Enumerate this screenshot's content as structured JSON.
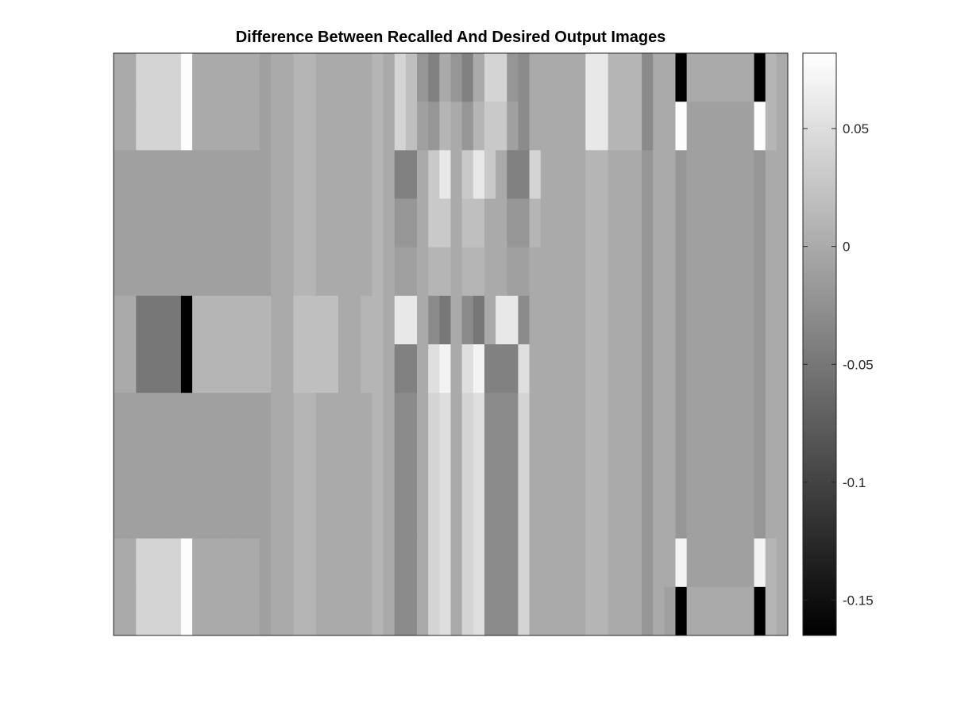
{
  "chart_data": {
    "type": "heatmap",
    "title": "Difference Between Recalled And Desired Output Images",
    "xlabel": "",
    "ylabel": "",
    "colormap": "gray",
    "clim": [
      -0.165,
      0.082
    ],
    "colorbar": {
      "ticks": [
        0.05,
        0,
        -0.05,
        -0.1,
        -0.15
      ],
      "tick_labels": [
        "0.05",
        "0",
        "-0.05",
        "-0.1",
        "-0.15"
      ],
      "placement": "right"
    },
    "n_rows": 12,
    "n_cols": 60,
    "grid": false,
    "values": [
      [
        0.0,
        0.0,
        0.04,
        0.04,
        0.04,
        0.04,
        0.08,
        0.0,
        0.0,
        0.0,
        0.0,
        0.0,
        0.0,
        -0.01,
        0.0,
        0.0,
        0.01,
        0.01,
        0.0,
        0.0,
        0.0,
        0.0,
        0.0,
        0.01,
        0.0,
        0.04,
        0.02,
        -0.02,
        -0.04,
        0.0,
        -0.02,
        -0.04,
        0.0,
        0.04,
        0.04,
        -0.02,
        -0.03,
        0.0,
        0.0,
        0.0,
        0.0,
        0.0,
        0.06,
        0.06,
        0.01,
        0.01,
        0.01,
        -0.03,
        0.0,
        0.0,
        -0.17,
        0.0,
        0.0,
        0.0,
        0.0,
        0.0,
        0.0,
        -0.17,
        0.01,
        0.0
      ],
      [
        0.0,
        0.0,
        0.04,
        0.04,
        0.04,
        0.04,
        0.08,
        0.0,
        0.0,
        0.0,
        0.0,
        0.0,
        0.0,
        -0.01,
        0.0,
        0.0,
        0.01,
        0.01,
        0.0,
        0.0,
        0.0,
        0.0,
        0.0,
        0.01,
        0.0,
        0.04,
        0.02,
        -0.01,
        -0.02,
        0.01,
        0.0,
        -0.02,
        0.01,
        0.03,
        0.03,
        -0.01,
        -0.03,
        0.0,
        0.0,
        0.0,
        0.0,
        0.0,
        0.06,
        0.06,
        0.01,
        0.01,
        0.01,
        -0.03,
        0.0,
        0.0,
        0.08,
        -0.01,
        -0.01,
        -0.01,
        -0.01,
        -0.01,
        -0.01,
        0.08,
        0.01,
        0.0
      ],
      [
        -0.01,
        -0.01,
        -0.01,
        -0.01,
        -0.01,
        -0.01,
        -0.01,
        -0.01,
        -0.01,
        -0.01,
        -0.01,
        -0.01,
        -0.01,
        -0.01,
        0.0,
        0.0,
        0.01,
        0.01,
        0.0,
        0.0,
        0.0,
        0.0,
        0.0,
        0.01,
        0.0,
        -0.04,
        -0.04,
        0.0,
        0.03,
        0.06,
        0.0,
        0.03,
        0.06,
        0.03,
        0.0,
        -0.04,
        -0.04,
        0.04,
        0.0,
        0.0,
        0.0,
        0.0,
        0.01,
        0.01,
        0.0,
        0.0,
        0.0,
        -0.02,
        0.0,
        0.0,
        -0.02,
        -0.01,
        -0.01,
        -0.01,
        -0.01,
        -0.01,
        -0.01,
        -0.02,
        0.0,
        0.0
      ],
      [
        -0.01,
        -0.01,
        -0.01,
        -0.01,
        -0.01,
        -0.01,
        -0.01,
        -0.01,
        -0.01,
        -0.01,
        -0.01,
        -0.01,
        -0.01,
        -0.01,
        0.0,
        0.0,
        0.01,
        0.01,
        0.0,
        0.0,
        0.0,
        0.0,
        0.0,
        0.01,
        0.0,
        -0.02,
        -0.02,
        0.0,
        0.03,
        0.03,
        0.0,
        0.02,
        0.02,
        0.0,
        0.0,
        -0.02,
        -0.02,
        0.01,
        0.0,
        0.0,
        0.0,
        0.0,
        0.01,
        0.01,
        0.0,
        0.0,
        0.0,
        -0.02,
        0.0,
        0.0,
        -0.02,
        -0.01,
        -0.01,
        -0.01,
        -0.01,
        -0.01,
        -0.01,
        -0.02,
        0.0,
        0.0
      ],
      [
        -0.01,
        -0.01,
        -0.01,
        -0.01,
        -0.01,
        -0.01,
        -0.01,
        -0.01,
        -0.01,
        -0.01,
        -0.01,
        -0.01,
        -0.01,
        -0.01,
        0.0,
        0.0,
        0.01,
        0.01,
        0.0,
        0.0,
        0.0,
        0.0,
        0.0,
        0.01,
        0.0,
        -0.01,
        -0.01,
        0.0,
        0.01,
        0.01,
        0.0,
        0.01,
        0.01,
        0.0,
        0.0,
        -0.01,
        -0.01,
        0.0,
        0.0,
        0.0,
        0.0,
        0.0,
        0.01,
        0.01,
        0.0,
        0.0,
        0.0,
        -0.02,
        0.0,
        0.0,
        -0.02,
        -0.01,
        -0.01,
        -0.01,
        -0.01,
        -0.01,
        -0.01,
        -0.02,
        0.0,
        0.0
      ],
      [
        0.0,
        0.0,
        -0.05,
        -0.05,
        -0.05,
        -0.05,
        -0.17,
        0.01,
        0.01,
        0.01,
        0.01,
        0.01,
        0.01,
        0.01,
        0.0,
        0.0,
        0.02,
        0.02,
        0.02,
        0.02,
        0.0,
        0.0,
        0.01,
        0.01,
        0.0,
        0.06,
        0.06,
        0.0,
        -0.03,
        -0.05,
        0.0,
        -0.03,
        -0.05,
        0.0,
        0.06,
        0.06,
        -0.03,
        0.0,
        0.0,
        0.0,
        0.0,
        0.0,
        0.01,
        0.01,
        0.0,
        0.0,
        0.0,
        -0.02,
        0.0,
        0.0,
        -0.02,
        -0.01,
        -0.01,
        -0.01,
        -0.01,
        -0.01,
        -0.01,
        -0.02,
        0.0,
        0.0
      ],
      [
        0.0,
        0.0,
        -0.05,
        -0.05,
        -0.05,
        -0.05,
        -0.17,
        0.01,
        0.01,
        0.01,
        0.01,
        0.01,
        0.01,
        0.01,
        0.0,
        0.0,
        0.02,
        0.02,
        0.02,
        0.02,
        0.0,
        0.0,
        0.01,
        0.01,
        0.0,
        -0.04,
        -0.04,
        0.0,
        0.05,
        0.07,
        0.0,
        0.05,
        0.07,
        -0.04,
        -0.04,
        -0.04,
        0.05,
        0.0,
        0.0,
        0.0,
        0.0,
        0.0,
        0.01,
        0.01,
        0.0,
        0.0,
        0.0,
        -0.02,
        0.0,
        0.0,
        -0.02,
        -0.01,
        -0.01,
        -0.01,
        -0.01,
        -0.01,
        -0.01,
        -0.02,
        0.0,
        0.0
      ],
      [
        -0.01,
        -0.01,
        -0.01,
        -0.01,
        -0.01,
        -0.01,
        -0.01,
        -0.01,
        -0.01,
        -0.01,
        -0.01,
        -0.01,
        -0.01,
        -0.01,
        0.0,
        0.0,
        0.01,
        0.01,
        0.0,
        0.0,
        0.0,
        0.0,
        0.0,
        0.01,
        0.0,
        -0.03,
        -0.03,
        0.0,
        0.04,
        0.05,
        0.0,
        0.04,
        0.05,
        -0.03,
        -0.03,
        -0.03,
        0.04,
        0.0,
        0.0,
        0.0,
        0.0,
        0.0,
        0.01,
        0.01,
        0.0,
        0.0,
        0.0,
        -0.02,
        0.0,
        0.0,
        -0.02,
        -0.01,
        -0.01,
        -0.01,
        -0.01,
        -0.01,
        -0.01,
        -0.02,
        0.0,
        0.0
      ],
      [
        -0.01,
        -0.01,
        -0.01,
        -0.01,
        -0.01,
        -0.01,
        -0.01,
        -0.01,
        -0.01,
        -0.01,
        -0.01,
        -0.01,
        -0.01,
        -0.01,
        0.0,
        0.0,
        0.01,
        0.01,
        0.0,
        0.0,
        0.0,
        0.0,
        0.0,
        0.01,
        0.0,
        -0.03,
        -0.03,
        0.0,
        0.04,
        0.05,
        0.0,
        0.04,
        0.05,
        -0.03,
        -0.03,
        -0.03,
        0.04,
        0.0,
        0.0,
        0.0,
        0.0,
        0.0,
        0.01,
        0.01,
        0.0,
        0.0,
        0.0,
        -0.02,
        0.0,
        0.0,
        -0.02,
        -0.01,
        -0.01,
        -0.01,
        -0.01,
        -0.01,
        -0.01,
        -0.02,
        0.0,
        0.0
      ],
      [
        -0.01,
        -0.01,
        -0.01,
        -0.01,
        -0.01,
        -0.01,
        -0.01,
        -0.01,
        -0.01,
        -0.01,
        -0.01,
        -0.01,
        -0.01,
        -0.01,
        0.0,
        0.0,
        0.01,
        0.01,
        0.0,
        0.0,
        0.0,
        0.0,
        0.0,
        0.01,
        0.0,
        -0.03,
        -0.03,
        0.0,
        0.04,
        0.05,
        0.0,
        0.04,
        0.05,
        -0.03,
        -0.03,
        -0.03,
        0.04,
        0.0,
        0.0,
        0.0,
        0.0,
        0.0,
        0.01,
        0.01,
        0.0,
        0.0,
        0.0,
        -0.02,
        0.0,
        0.0,
        -0.02,
        -0.01,
        -0.01,
        -0.01,
        -0.01,
        -0.01,
        -0.01,
        -0.02,
        0.0,
        0.0
      ],
      [
        0.0,
        0.0,
        0.04,
        0.04,
        0.04,
        0.04,
        0.08,
        0.0,
        0.0,
        0.0,
        0.0,
        0.0,
        0.0,
        -0.01,
        0.0,
        0.0,
        0.01,
        0.01,
        0.0,
        0.0,
        0.0,
        0.0,
        0.0,
        0.01,
        0.0,
        -0.03,
        -0.03,
        0.0,
        0.04,
        0.05,
        0.0,
        0.04,
        0.05,
        -0.03,
        -0.03,
        -0.03,
        0.04,
        0.0,
        0.0,
        0.0,
        0.0,
        0.0,
        0.01,
        0.01,
        0.0,
        0.0,
        0.0,
        -0.02,
        0.0,
        0.0,
        0.07,
        -0.01,
        -0.01,
        -0.01,
        -0.01,
        -0.01,
        -0.01,
        0.07,
        0.01,
        0.0
      ],
      [
        0.0,
        0.0,
        0.04,
        0.04,
        0.04,
        0.04,
        0.08,
        0.0,
        0.0,
        0.0,
        0.0,
        0.0,
        0.0,
        -0.01,
        0.0,
        0.0,
        0.01,
        0.01,
        0.0,
        0.0,
        0.0,
        0.0,
        0.0,
        0.01,
        0.0,
        -0.03,
        -0.03,
        0.0,
        0.04,
        0.05,
        0.0,
        0.04,
        0.05,
        -0.03,
        -0.03,
        -0.03,
        0.04,
        0.0,
        0.0,
        0.0,
        0.0,
        0.0,
        0.01,
        0.01,
        0.0,
        0.0,
        0.0,
        -0.02,
        0.0,
        -0.01,
        -0.17,
        0.0,
        0.0,
        0.0,
        0.0,
        0.0,
        0.0,
        -0.17,
        0.01,
        0.0
      ]
    ]
  }
}
